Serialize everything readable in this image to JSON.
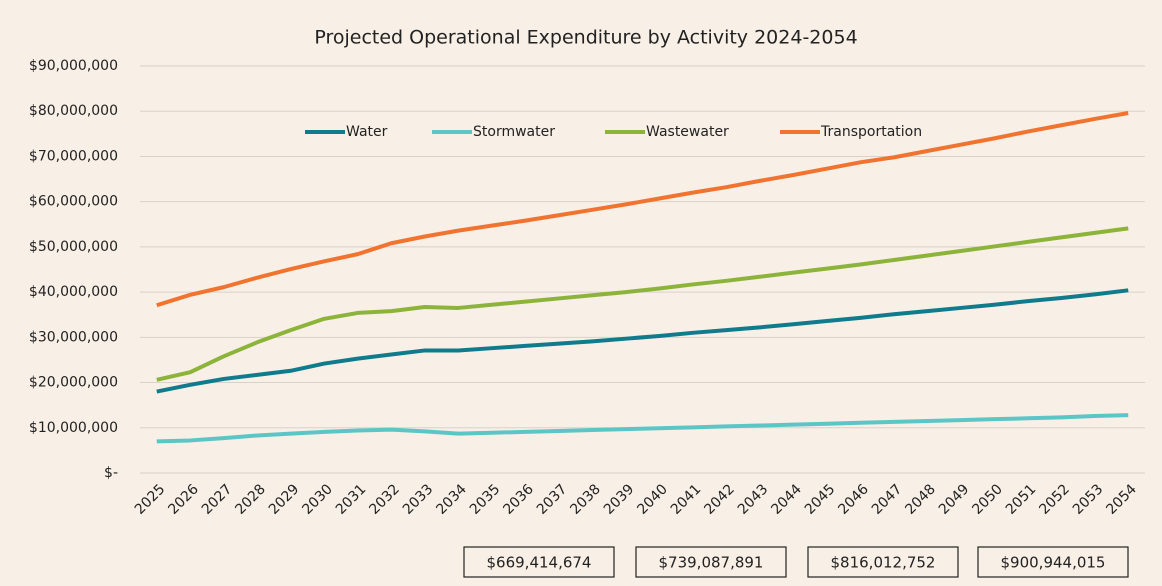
{
  "chart_data": {
    "type": "line",
    "title": "Projected Operational Expenditure by Activity 2024-2054",
    "categories": [
      "2025",
      "2026",
      "2027",
      "2028",
      "2029",
      "2030",
      "2031",
      "2032",
      "2033",
      "2034",
      "2035",
      "2036",
      "2037",
      "2038",
      "2039",
      "2040",
      "2041",
      "2042",
      "2043",
      "2044",
      "2045",
      "2046",
      "2047",
      "2048",
      "2049",
      "2050",
      "2051",
      "2052",
      "2053",
      "2054"
    ],
    "series": [
      {
        "name": "Water",
        "color": "#0f7b8c",
        "values": [
          18000000,
          19500000,
          20800000,
          21700000,
          22600000,
          24200000,
          25300000,
          26200000,
          27100000,
          27100000,
          27600000,
          28100000,
          28600000,
          29100000,
          29700000,
          30300000,
          31000000,
          31600000,
          32200000,
          32900000,
          33600000,
          34300000,
          35100000,
          35800000,
          36500000,
          37200000,
          38000000,
          38700000,
          39500000,
          40400000
        ]
      },
      {
        "name": "Stormwater",
        "color": "#5cc6c6",
        "values": [
          7000000,
          7200000,
          7700000,
          8300000,
          8700000,
          9100000,
          9400000,
          9600000,
          9200000,
          8700000,
          8900000,
          9100000,
          9300000,
          9500000,
          9700000,
          9900000,
          10100000,
          10300000,
          10500000,
          10700000,
          10900000,
          11100000,
          11300000,
          11500000,
          11700000,
          11900000,
          12100000,
          12300000,
          12600000,
          12800000
        ]
      },
      {
        "name": "Wastewater",
        "color": "#8db43a",
        "values": [
          20600000,
          22300000,
          25800000,
          28900000,
          31600000,
          34100000,
          35400000,
          35800000,
          36700000,
          36500000,
          37200000,
          37900000,
          38600000,
          39300000,
          40000000,
          40800000,
          41700000,
          42500000,
          43400000,
          44300000,
          45200000,
          46100000,
          47100000,
          48100000,
          49100000,
          50100000,
          51100000,
          52100000,
          53100000,
          54100000
        ]
      },
      {
        "name": "Transportation",
        "color": "#f07430",
        "values": [
          37100000,
          39400000,
          41100000,
          43200000,
          45100000,
          46800000,
          48400000,
          50800000,
          52300000,
          53600000,
          54700000,
          55800000,
          57000000,
          58200000,
          59400000,
          60700000,
          62000000,
          63200000,
          64600000,
          65900000,
          67300000,
          68700000,
          69800000,
          71200000,
          72600000,
          74000000,
          75500000,
          76900000,
          78300000,
          79600000
        ]
      }
    ],
    "ylim": [
      0,
      90000000
    ],
    "yticks": [
      {
        "value": 0,
        "label": "$-"
      },
      {
        "value": 10000000,
        "label": "$10,000,000"
      },
      {
        "value": 20000000,
        "label": "$20,000,000"
      },
      {
        "value": 30000000,
        "label": "$30,000,000"
      },
      {
        "value": 40000000,
        "label": "$40,000,000"
      },
      {
        "value": 50000000,
        "label": "$50,000,000"
      },
      {
        "value": 60000000,
        "label": "$60,000,000"
      },
      {
        "value": 70000000,
        "label": "$70,000,000"
      },
      {
        "value": 80000000,
        "label": "$80,000,000"
      },
      {
        "value": 90000000,
        "label": "$90,000,000"
      }
    ],
    "grid": true,
    "legend": "top",
    "annotations": [
      "$669,414,674",
      "$739,087,891",
      "$816,012,752",
      "$900,944,015"
    ]
  }
}
